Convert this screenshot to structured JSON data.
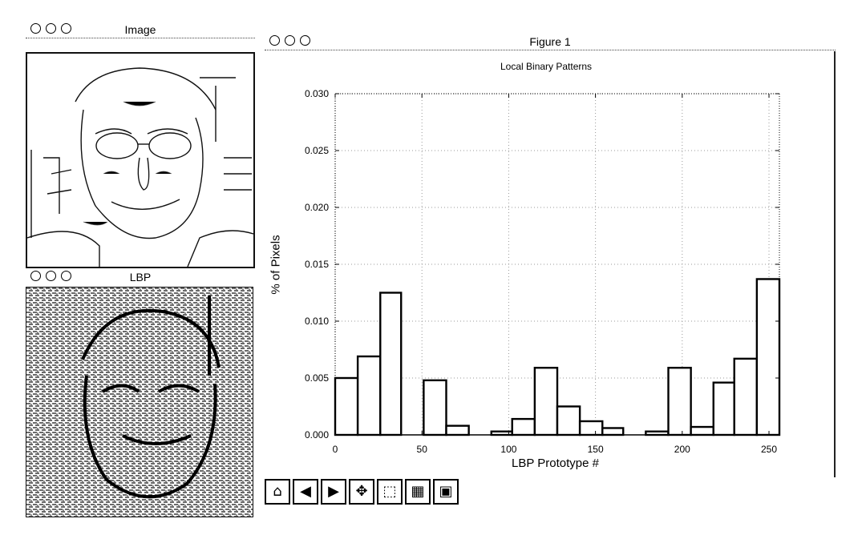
{
  "windows": {
    "image": {
      "title": "Image"
    },
    "lbp": {
      "title": "LBP"
    },
    "figure": {
      "title": "Figure 1"
    }
  },
  "chart_data": {
    "type": "bar",
    "title": "Local Binary Patterns",
    "xlabel": "LBP Prototype #",
    "ylabel": "% of Pixels",
    "xlim": [
      0,
      256
    ],
    "ylim": [
      0,
      0.03
    ],
    "xticks": [
      0,
      50,
      100,
      150,
      200,
      250
    ],
    "yticks": [
      "0.000",
      "0.005",
      "0.010",
      "0.015",
      "0.020",
      "0.025",
      "0.030"
    ],
    "grid": true,
    "bins": [
      {
        "x0": 0,
        "x1": 13,
        "value": 0.005
      },
      {
        "x0": 13,
        "x1": 26,
        "value": 0.0069
      },
      {
        "x0": 26,
        "x1": 38,
        "value": 0.0125
      },
      {
        "x0": 38,
        "x1": 51,
        "value": 0.0
      },
      {
        "x0": 51,
        "x1": 64,
        "value": 0.0048
      },
      {
        "x0": 64,
        "x1": 77,
        "value": 0.0008
      },
      {
        "x0": 77,
        "x1": 90,
        "value": 0.0
      },
      {
        "x0": 90,
        "x1": 102,
        "value": 0.0003
      },
      {
        "x0": 102,
        "x1": 115,
        "value": 0.0014
      },
      {
        "x0": 115,
        "x1": 128,
        "value": 0.0059
      },
      {
        "x0": 128,
        "x1": 141,
        "value": 0.0025
      },
      {
        "x0": 141,
        "x1": 154,
        "value": 0.0012
      },
      {
        "x0": 154,
        "x1": 166,
        "value": 0.0006
      },
      {
        "x0": 166,
        "x1": 179,
        "value": 0.0
      },
      {
        "x0": 179,
        "x1": 192,
        "value": 0.0003
      },
      {
        "x0": 192,
        "x1": 205,
        "value": 0.0059
      },
      {
        "x0": 205,
        "x1": 218,
        "value": 0.0007
      },
      {
        "x0": 218,
        "x1": 230,
        "value": 0.0046
      },
      {
        "x0": 230,
        "x1": 243,
        "value": 0.0067
      },
      {
        "x0": 243,
        "x1": 256,
        "value": 0.0137
      }
    ]
  },
  "toolbar": {
    "buttons": [
      {
        "name": "home",
        "icon": "home-icon",
        "glyph": "⌂"
      },
      {
        "name": "back",
        "icon": "back-arrow-icon",
        "glyph": "◀"
      },
      {
        "name": "forward",
        "icon": "forward-arrow-icon",
        "glyph": "▶"
      },
      {
        "name": "pan",
        "icon": "pan-move-icon",
        "glyph": "✥"
      },
      {
        "name": "zoom",
        "icon": "zoom-rect-icon",
        "glyph": "⬚"
      },
      {
        "name": "subplots",
        "icon": "subplots-config-icon",
        "glyph": "▦"
      },
      {
        "name": "save",
        "icon": "save-floppy-icon",
        "glyph": "▣"
      }
    ]
  }
}
